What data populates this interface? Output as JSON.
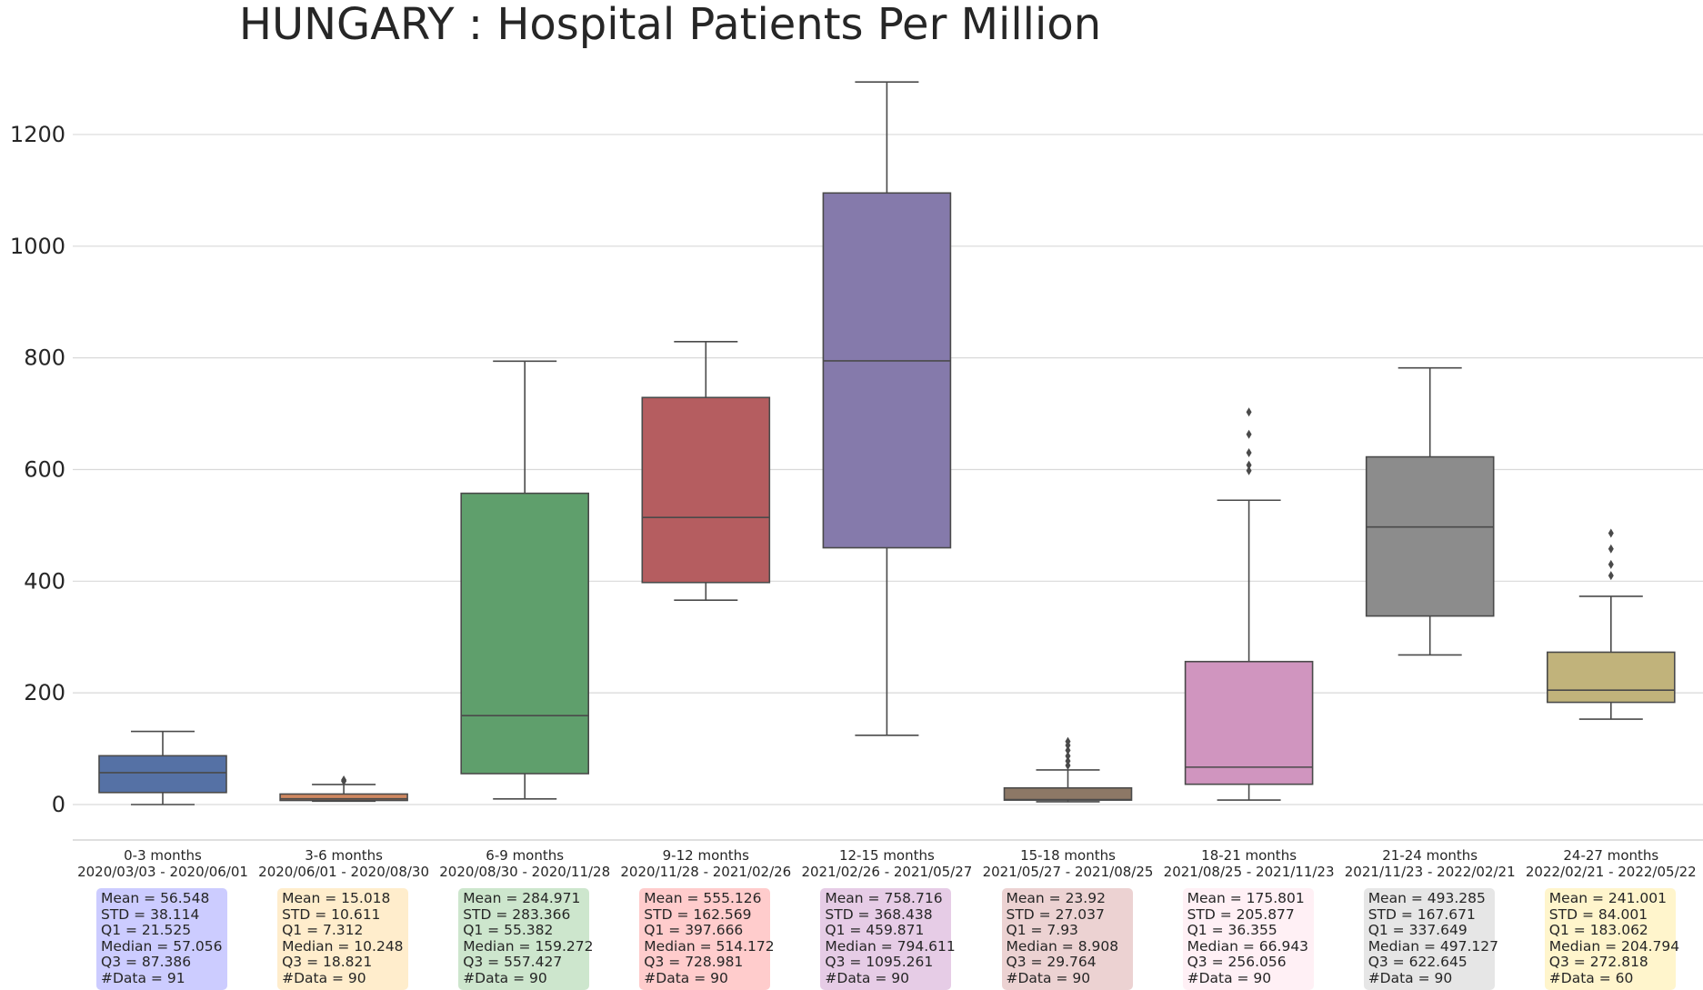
{
  "chart_data": {
    "type": "box",
    "title": "HUNGARY : Hospital Patients Per Million",
    "xlabel": "",
    "ylabel": "",
    "ylim": [
      -65,
      1330
    ],
    "yticks": [
      0,
      200,
      400,
      600,
      800,
      1000,
      1200
    ],
    "grid": "horizontal",
    "groups": [
      {
        "label": "0-3 months",
        "dates": "2020/03/03 - 2020/06/01",
        "color": "#5571a5",
        "stats_bg": "#ccccff",
        "whisker_low": 0,
        "q1": 21.525,
        "median": 57.056,
        "q3": 87.386,
        "whisker_high": 131,
        "fliers": [],
        "stats": [
          "Mean = 56.548",
          "STD = 38.114",
          "Q1 = 21.525",
          "Median = 57.056",
          "Q3 = 87.386",
          "#Data = 91"
        ]
      },
      {
        "label": "3-6 months",
        "dates": "2020/06/01 - 2020/08/30",
        "color": "#d08860",
        "stats_bg": "#ffedcc",
        "whisker_low": 6,
        "q1": 7.312,
        "median": 10.248,
        "q3": 18.821,
        "whisker_high": 36,
        "fliers": [
          42,
          44
        ],
        "stats": [
          "Mean = 15.018",
          "STD = 10.611",
          "Q1 = 7.312",
          "Median = 10.248",
          "Q3 = 18.821",
          "#Data = 90"
        ]
      },
      {
        "label": "6-9 months",
        "dates": "2020/08/30 - 2020/11/28",
        "color": "#5f9f6c",
        "stats_bg": "#cde6cd",
        "whisker_low": 10,
        "q1": 55.382,
        "median": 159.272,
        "q3": 557.427,
        "whisker_high": 794,
        "fliers": [],
        "stats": [
          "Mean = 284.971",
          "STD = 283.366",
          "Q1 = 55.382",
          "Median = 159.272",
          "Q3 = 557.427",
          "#Data = 90"
        ]
      },
      {
        "label": "9-12 months",
        "dates": "2020/11/28 - 2021/02/26",
        "color": "#b55d60",
        "stats_bg": "#ffcccc",
        "whisker_low": 366,
        "q1": 397.666,
        "median": 514.172,
        "q3": 728.981,
        "whisker_high": 829,
        "fliers": [],
        "stats": [
          "Mean = 555.126",
          "STD = 162.569",
          "Q1 = 397.666",
          "Median = 514.172",
          "Q3 = 728.981",
          "#Data = 90"
        ]
      },
      {
        "label": "12-15 months",
        "dates": "2021/02/26 - 2021/05/27",
        "color": "#857aab",
        "stats_bg": "#e6cce6",
        "whisker_low": 124,
        "q1": 459.871,
        "median": 794.611,
        "q3": 1095.261,
        "whisker_high": 1294,
        "fliers": [],
        "stats": [
          "Mean = 758.716",
          "STD = 368.438",
          "Q1 = 459.871",
          "Median = 794.611",
          "Q3 = 1095.261",
          "#Data = 90"
        ]
      },
      {
        "label": "15-18 months",
        "dates": "2021/05/27 - 2021/08/25",
        "color": "#8d7866",
        "stats_bg": "#ecd2d2",
        "whisker_low": 5,
        "q1": 7.93,
        "median": 8.908,
        "q3": 29.764,
        "whisker_high": 62,
        "fliers": [
          70,
          78,
          87,
          97,
          106,
          113
        ],
        "stats": [
          "Mean = 23.92",
          "STD = 27.037",
          "Q1 = 7.93",
          "Median = 8.908",
          "Q3 = 29.764",
          "#Data = 90"
        ]
      },
      {
        "label": "18-21 months",
        "dates": "2021/08/25 - 2021/11/23",
        "color": "#d095bf",
        "stats_bg": "#fff0f5",
        "whisker_low": 8,
        "q1": 36.355,
        "median": 66.943,
        "q3": 256.056,
        "whisker_high": 545,
        "fliers": [
          598,
          608,
          630,
          663,
          703
        ],
        "stats": [
          "Mean = 175.801",
          "STD = 205.877",
          "Q1 = 36.355",
          "Median = 66.943",
          "Q3 = 256.056",
          "#Data = 90"
        ]
      },
      {
        "label": "21-24 months",
        "dates": "2021/11/23 - 2022/02/21",
        "color": "#8c8c8c",
        "stats_bg": "#e6e6e6",
        "whisker_low": 268,
        "q1": 337.649,
        "median": 497.127,
        "q3": 622.645,
        "whisker_high": 782,
        "fliers": [],
        "stats": [
          "Mean = 493.285",
          "STD = 167.671",
          "Q1 = 337.649",
          "Median = 497.127",
          "Q3 = 622.645",
          "#Data = 90"
        ]
      },
      {
        "label": "24-27 months",
        "dates": "2022/02/21 - 2022/05/22",
        "color": "#c1b37b",
        "stats_bg": "#fff5cc",
        "whisker_low": 153,
        "q1": 183.062,
        "median": 204.794,
        "q3": 272.818,
        "whisker_high": 373,
        "fliers": [
          410,
          430,
          458,
          486
        ],
        "stats": [
          "Mean = 241.001",
          "STD = 84.001",
          "Q1 = 183.062",
          "Median = 204.794",
          "Q3 = 272.818",
          "#Data = 60"
        ]
      }
    ]
  }
}
